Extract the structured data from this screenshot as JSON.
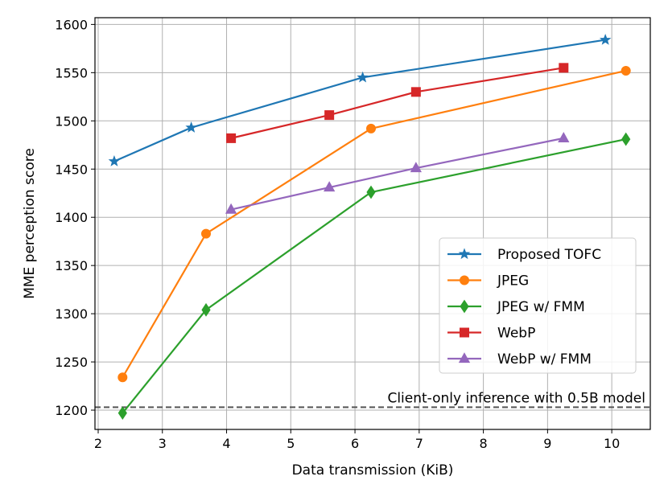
{
  "chart_data": {
    "type": "line",
    "title": "",
    "xlabel": "Data transmission (KiB)",
    "ylabel": "MME perception score",
    "xlim": [
      1.95,
      10.6
    ],
    "ylim": [
      1180,
      1607
    ],
    "xticks": [
      2,
      3,
      4,
      5,
      6,
      7,
      8,
      9,
      10
    ],
    "yticks": [
      1200,
      1250,
      1300,
      1350,
      1400,
      1450,
      1500,
      1550,
      1600
    ],
    "grid": true,
    "legend_position": "center-right",
    "series": [
      {
        "name": "Proposed TOFC",
        "color": "#1f77b4",
        "marker": "star",
        "x": [
          2.25,
          3.45,
          6.12,
          9.9
        ],
        "y": [
          1458,
          1493,
          1545,
          1584
        ]
      },
      {
        "name": "JPEG",
        "color": "#ff7f0e",
        "marker": "circle",
        "x": [
          2.38,
          3.68,
          6.25,
          10.22
        ],
        "y": [
          1234,
          1383,
          1492,
          1552
        ]
      },
      {
        "name": "JPEG w/ FMM",
        "color": "#2ca02c",
        "marker": "diamond",
        "x": [
          2.38,
          3.68,
          6.25,
          10.22
        ],
        "y": [
          1197,
          1304,
          1426,
          1481
        ]
      },
      {
        "name": "WebP",
        "color": "#d62728",
        "marker": "square",
        "x": [
          4.07,
          5.6,
          6.95,
          9.25
        ],
        "y": [
          1482,
          1506,
          1530,
          1555
        ]
      },
      {
        "name": "WebP w/ FMM",
        "color": "#9467bd",
        "marker": "triangle",
        "x": [
          4.07,
          5.6,
          6.95,
          9.25
        ],
        "y": [
          1408,
          1431,
          1451,
          1482
        ]
      }
    ],
    "reference_line": {
      "label": "Client-only inference with 0.5B model",
      "y": 1203,
      "color": "#555555",
      "style": "dashed"
    }
  }
}
